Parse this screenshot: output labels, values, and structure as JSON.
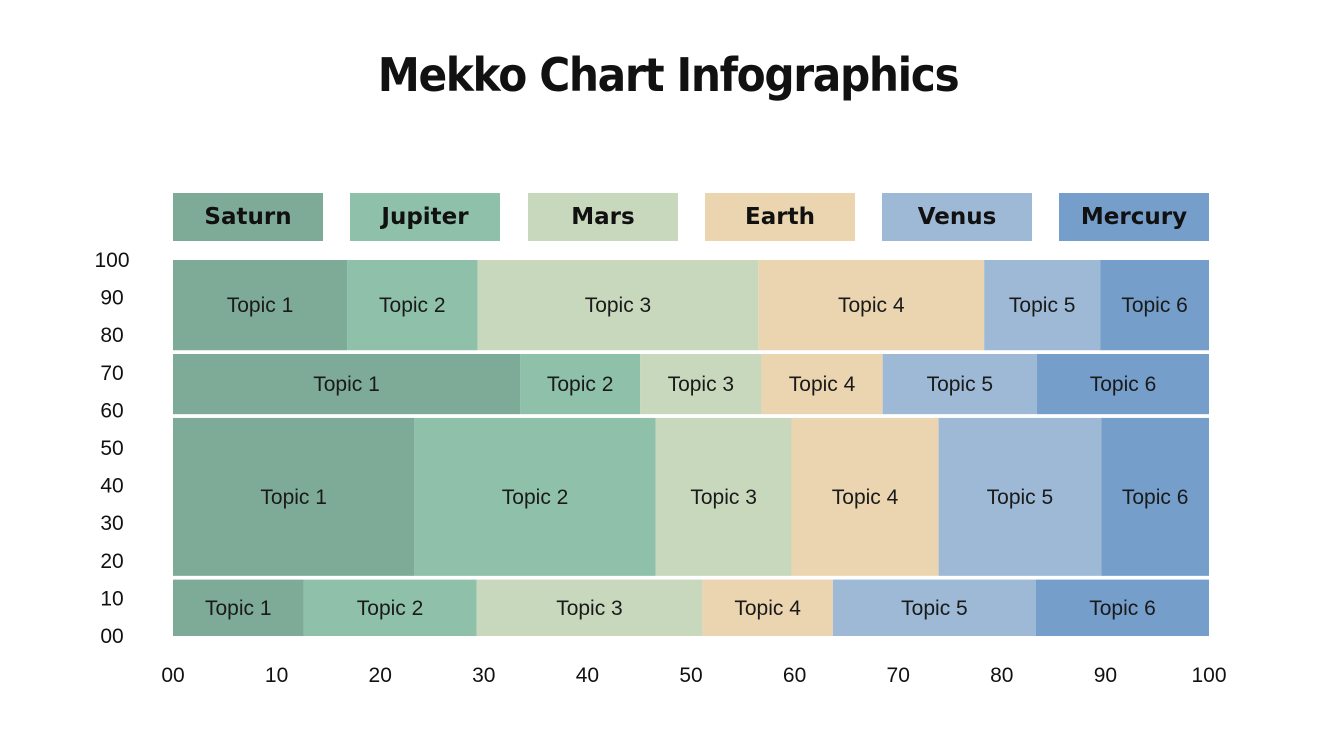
{
  "title": "Mekko Chart Infographics",
  "legend": [
    {
      "label": "Saturn",
      "color": "#7eab98"
    },
    {
      "label": "Jupiter",
      "color": "#8fc1aa"
    },
    {
      "label": "Mars",
      "color": "#c8d8bd"
    },
    {
      "label": "Earth",
      "color": "#ebd5b0"
    },
    {
      "label": "Venus",
      "color": "#9db9d6"
    },
    {
      "label": "Mercury",
      "color": "#759ecb"
    }
  ],
  "chart_data": {
    "type": "bar",
    "subtype": "mekko",
    "title": "Mekko Chart Infographics",
    "xlim": [
      0,
      100
    ],
    "ylim": [
      0,
      100
    ],
    "x_ticks": [
      "00",
      "10",
      "20",
      "30",
      "40",
      "50",
      "60",
      "70",
      "80",
      "90",
      "100"
    ],
    "y_ticks": [
      "00",
      "10",
      "20",
      "30",
      "40",
      "50",
      "60",
      "70",
      "80",
      "90",
      "100"
    ],
    "series_names": [
      "Saturn",
      "Jupiter",
      "Mars",
      "Earth",
      "Venus",
      "Mercury"
    ],
    "rows": [
      {
        "y_range": [
          0,
          15
        ],
        "segments": [
          {
            "label": "Topic 1",
            "value": 12.6
          },
          {
            "label": "Topic 2",
            "value": 16.7
          },
          {
            "label": "Topic 3",
            "value": 21.8
          },
          {
            "label": "Topic 4",
            "value": 12.6
          },
          {
            "label": "Topic 5",
            "value": 19.6
          },
          {
            "label": "Topic 6",
            "value": 16.7
          }
        ]
      },
      {
        "y_range": [
          16,
          58
        ],
        "segments": [
          {
            "label": "Topic 1",
            "value": 23.3
          },
          {
            "label": "Topic 2",
            "value": 23.3
          },
          {
            "label": "Topic 3",
            "value": 13.1
          },
          {
            "label": "Topic 4",
            "value": 14.2
          },
          {
            "label": "Topic 5",
            "value": 15.7
          },
          {
            "label": "Topic 6",
            "value": 10.4
          }
        ]
      },
      {
        "y_range": [
          59,
          75
        ],
        "segments": [
          {
            "label": "Topic 1",
            "value": 33.5
          },
          {
            "label": "Topic 2",
            "value": 11.6
          },
          {
            "label": "Topic 3",
            "value": 11.7
          },
          {
            "label": "Topic 4",
            "value": 11.7
          },
          {
            "label": "Topic 5",
            "value": 14.9
          },
          {
            "label": "Topic 6",
            "value": 16.6
          }
        ]
      },
      {
        "y_range": [
          76,
          100
        ],
        "segments": [
          {
            "label": "Topic 1",
            "value": 16.8
          },
          {
            "label": "Topic 2",
            "value": 12.6
          },
          {
            "label": "Topic 3",
            "value": 27.1
          },
          {
            "label": "Topic 4",
            "value": 21.8
          },
          {
            "label": "Topic 5",
            "value": 11.2
          },
          {
            "label": "Topic 6",
            "value": 10.5
          }
        ]
      }
    ]
  }
}
